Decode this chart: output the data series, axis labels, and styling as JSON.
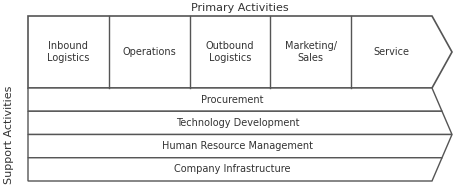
{
  "primary_label": "Primary Activities",
  "support_label": "Support Activities",
  "primary_activities": [
    "Inbound\nLogistics",
    "Operations",
    "Outbound\nLogistics",
    "Marketing/\nSales",
    "Service"
  ],
  "support_activities": [
    "Procurement",
    "Technology Development",
    "Human Resource Management",
    "Company Infrastructure"
  ],
  "bg_color": "#ffffff",
  "box_fill": "#ffffff",
  "box_edge": "#555555",
  "text_color": "#333333",
  "font_size_primary": 7.0,
  "font_size_support": 7.0,
  "font_size_label": 8.0,
  "fig_width": 4.62,
  "fig_height": 1.86,
  "dpi": 100
}
